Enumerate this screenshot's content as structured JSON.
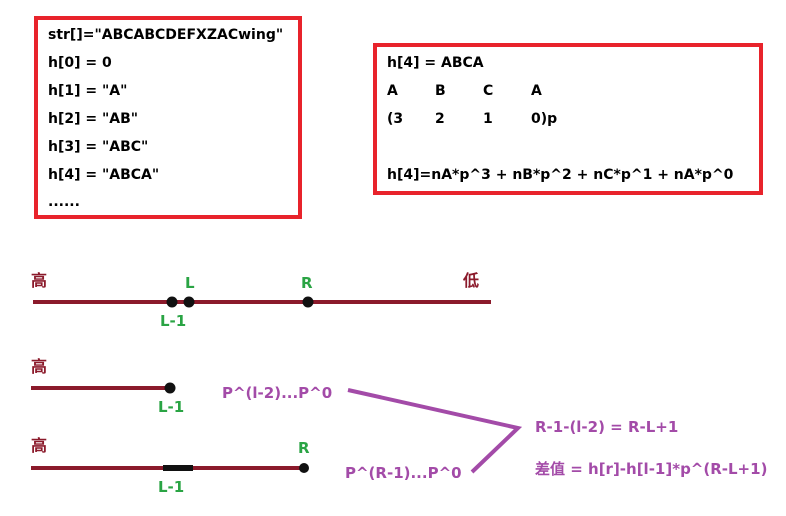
{
  "box1": {
    "lines": [
      "str[]=\"ABCABCDEFXZACwing\"",
      "h[0] = 0",
      "h[1] = \"A\"",
      "h[2] = \"AB\"",
      "h[3] = \"ABC\"",
      "h[4] = \"ABCA\"",
      "......"
    ]
  },
  "box2": {
    "title": "h[4] = ABCA",
    "letters": [
      "A",
      "B",
      "C",
      "A"
    ],
    "powers": [
      "(3",
      "2",
      "1",
      "0)p"
    ],
    "formula": "h[4]=nA*p^3 + nB*p^2 + nC*p^1 + nA*p^0"
  },
  "diagram": {
    "row1": {
      "high": "高",
      "low": "低",
      "L": "L",
      "R": "R",
      "L_minus_1": "L-1"
    },
    "row2": {
      "high": "高",
      "L_minus_1": "L-1",
      "range": "P^(l-2)...P^0"
    },
    "row3": {
      "high": "高",
      "R": "R",
      "L_minus_1": "L-1",
      "range": "P^(R-1)...P^0"
    },
    "result": {
      "diff": "R-1-(l-2) = R-L+1",
      "value": "差值 = h[r]-h[l-1]*p^(R-L+1)"
    }
  },
  "colors": {
    "box_border": "#e8232b",
    "axis": "#8b1a2b",
    "green": "#2aa444",
    "purple": "#a34ba8"
  }
}
